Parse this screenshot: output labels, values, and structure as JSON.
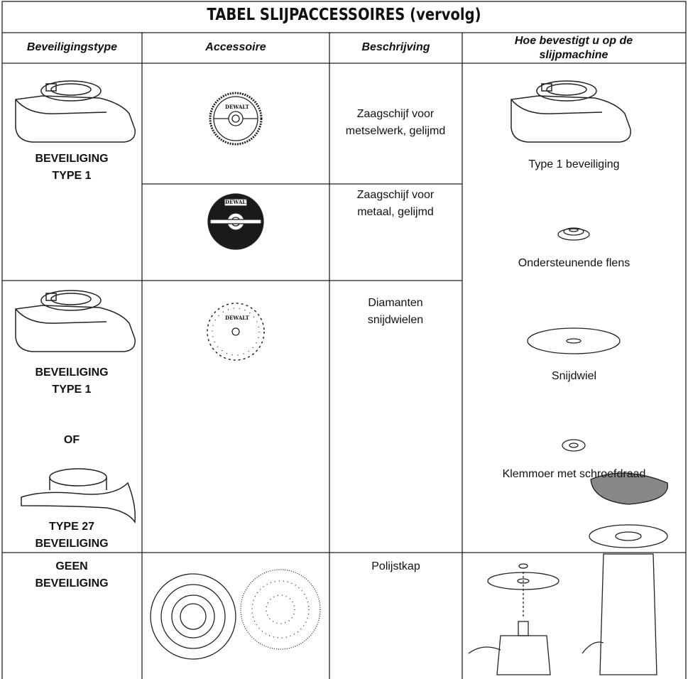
{
  "title": "TABEL SLIJPACCESSOIRES (vervolg)",
  "headers": [
    "Beveiligingstype",
    "Accessoire",
    "Beschrijving",
    "Hoe bevestigt u op de slijpmachine"
  ],
  "brand": "DEWALT",
  "rows": [
    {
      "guard": "BEVEILIGING TYPE 1",
      "descriptions": [
        "Zaagschijf voor metselwerk, gelijmd",
        "Zaagschijf voor metaal, gelijmd"
      ]
    },
    {
      "guard": "BEVEILIGING TYPE 1",
      "or": "OF",
      "guard_alt": "TYPE 27 BEVEILIGING",
      "descriptions": [
        "Diamanten snijdwielen"
      ]
    },
    {
      "guard": "GEEN BEVEILIGING",
      "descriptions": [
        "Polijstkap"
      ]
    }
  ],
  "mounting": [
    "Type 1 beveiliging",
    "Ondersteunende flens",
    "Snijdwiel",
    "Klemmoer met schroefdraad"
  ]
}
